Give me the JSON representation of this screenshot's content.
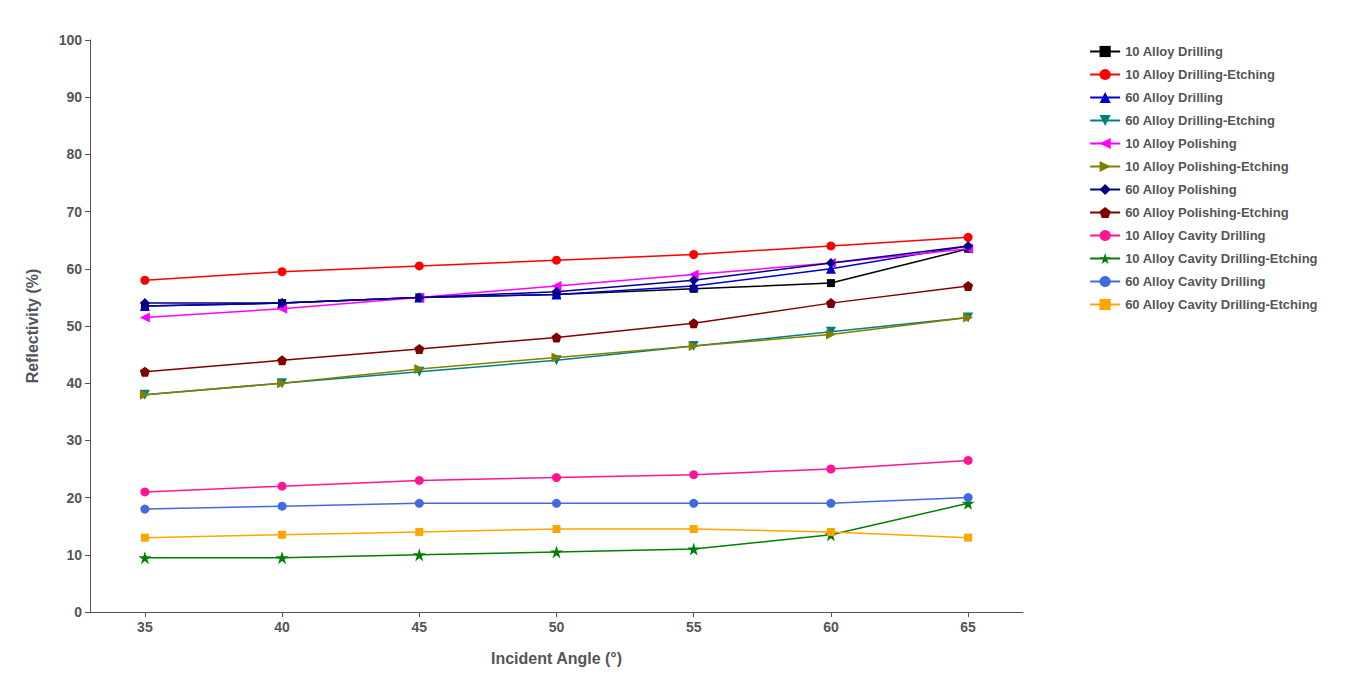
{
  "chart_data": {
    "type": "line",
    "x": [
      35,
      40,
      45,
      50,
      55,
      60,
      65
    ],
    "series": [
      {
        "name": "10 Alloy Drilling",
        "color": "#000000",
        "marker": "square",
        "values": [
          53.5,
          54,
          55,
          55.5,
          56.5,
          57.5,
          63.5
        ]
      },
      {
        "name": "10 Alloy Drilling-Etching",
        "color": "#ff0000",
        "marker": "circle",
        "values": [
          58,
          59.5,
          60.5,
          61.5,
          62.5,
          64,
          65.5
        ]
      },
      {
        "name": "60 Alloy Drilling",
        "color": "#0000cc",
        "marker": "triangle-up",
        "values": [
          53.5,
          54,
          55,
          55.5,
          57,
          60,
          64
        ]
      },
      {
        "name": "60 Alloy Drilling-Etching",
        "color": "#008080",
        "marker": "triangle-down",
        "values": [
          38,
          40,
          42,
          44,
          46.5,
          49,
          51.5
        ]
      },
      {
        "name": "10 Alloy Polishing",
        "color": "#ff00ff",
        "marker": "triangle-left",
        "values": [
          51.5,
          53,
          55,
          57,
          59,
          61,
          63.5
        ]
      },
      {
        "name": "10 Alloy Polishing-Etching",
        "color": "#808000",
        "marker": "triangle-right",
        "values": [
          38,
          40,
          42.5,
          44.5,
          46.5,
          48.5,
          51.5
        ]
      },
      {
        "name": "60 Alloy Polishing",
        "color": "#00008b",
        "marker": "diamond",
        "values": [
          54,
          54,
          55,
          56,
          58,
          61,
          64
        ]
      },
      {
        "name": "60 Alloy Polishing-Etching",
        "color": "#800000",
        "marker": "pentagon",
        "values": [
          42,
          44,
          46,
          48,
          50.5,
          54,
          57
        ]
      },
      {
        "name": "10 Alloy Cavity Drilling",
        "color": "#ff1493",
        "marker": "circle",
        "values": [
          21,
          22,
          23,
          23.5,
          24,
          25,
          26.5
        ]
      },
      {
        "name": "10 Alloy Cavity Drilling-Etching",
        "color": "#008000",
        "marker": "star",
        "values": [
          9.5,
          9.5,
          10,
          10.5,
          11,
          13.5,
          19
        ]
      },
      {
        "name": "60 Alloy Cavity Drilling",
        "color": "#4169e1",
        "marker": "circle",
        "values": [
          18,
          18.5,
          19,
          19,
          19,
          19,
          20
        ]
      },
      {
        "name": "60 Alloy Cavity Drilling-Etching",
        "color": "#ffa500",
        "marker": "square",
        "values": [
          13,
          13.5,
          14,
          14.5,
          14.5,
          14,
          13
        ]
      }
    ],
    "xlabel": "Incident Angle (°)",
    "ylabel": "Reflectivity (%)",
    "xlim": [
      33,
      67
    ],
    "xticks": [
      35,
      40,
      45,
      50,
      55,
      60,
      65
    ],
    "ylim": [
      0,
      100
    ],
    "yticks": [
      0,
      10,
      20,
      30,
      40,
      50,
      60,
      70,
      80,
      90,
      100
    ],
    "grid": false,
    "legend": "upper right"
  }
}
